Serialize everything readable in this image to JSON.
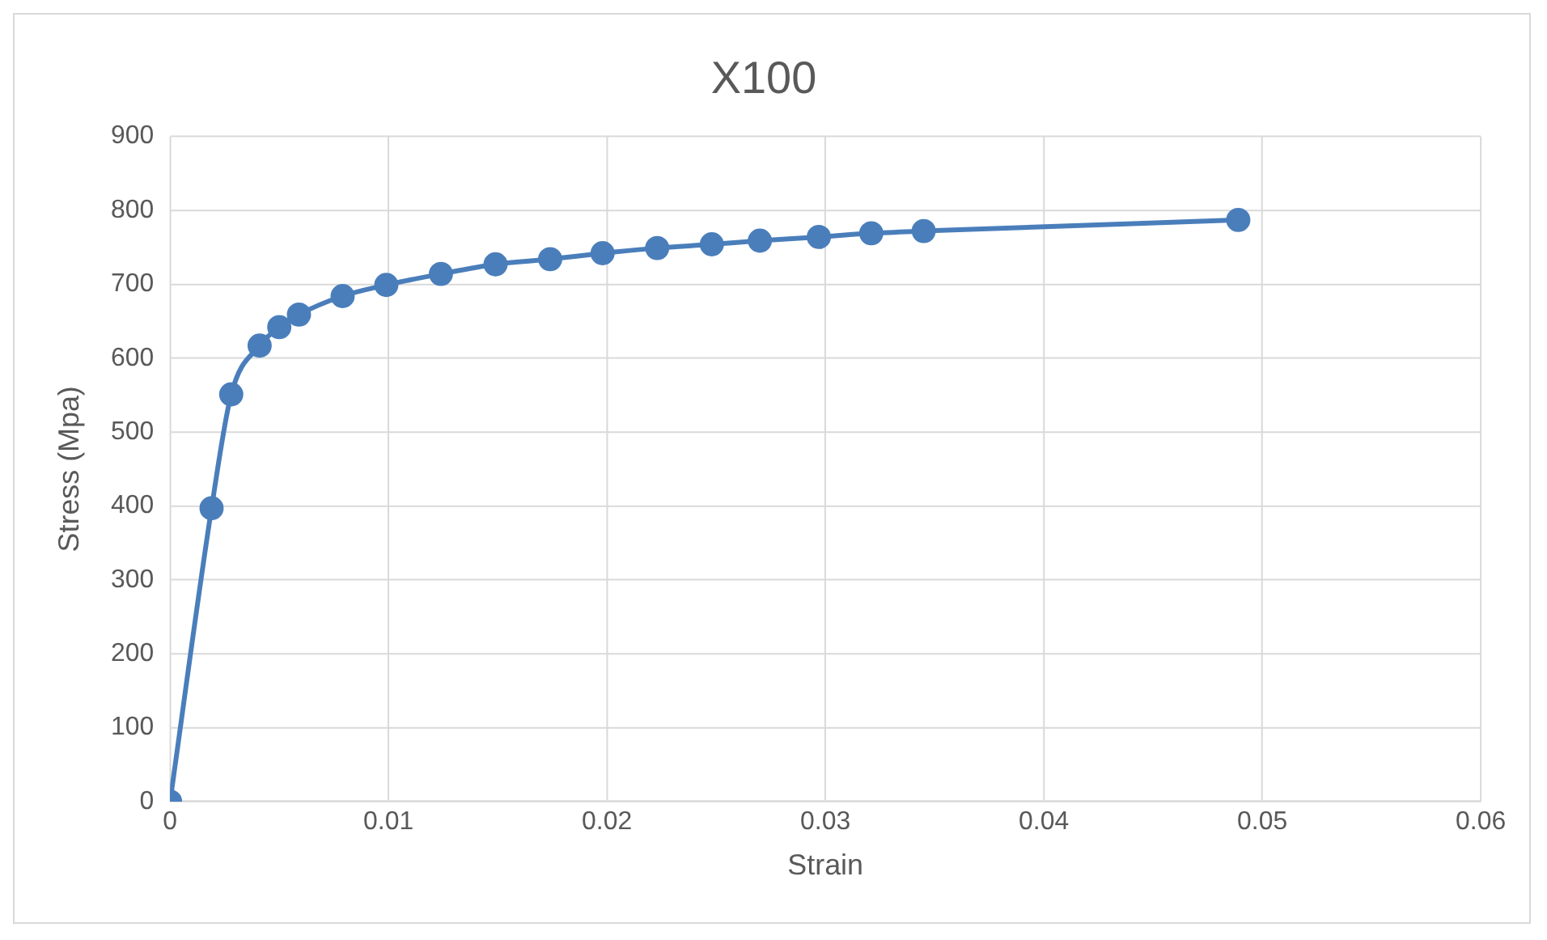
{
  "chart_data": {
    "type": "line",
    "title": "X100",
    "xlabel": "Strain",
    "ylabel": "Stress (Mpa)",
    "x": [
      0,
      0.0019,
      0.0028,
      0.0041,
      0.005,
      0.0059,
      0.0079,
      0.0099,
      0.0124,
      0.0149,
      0.0174,
      0.0198,
      0.0223,
      0.0248,
      0.027,
      0.0297,
      0.0321,
      0.0345,
      0.0489
    ],
    "series": [
      {
        "color": "#4a7ebb",
        "values": [
          0,
          397,
          551,
          617,
          642,
          659,
          684,
          699,
          714,
          727,
          734,
          742,
          749,
          754,
          759,
          764,
          769,
          772,
          787
        ]
      }
    ],
    "xlim": [
      0,
      0.06
    ],
    "xticks": [
      0,
      0.01,
      0.02,
      0.03,
      0.04,
      0.05,
      0.06
    ],
    "ylim": [
      0,
      900
    ],
    "yticks": [
      0,
      100,
      200,
      300,
      400,
      500,
      600,
      700,
      800,
      900
    ],
    "grid": true,
    "marker": "circle",
    "line_style": "solid",
    "legend": false
  }
}
